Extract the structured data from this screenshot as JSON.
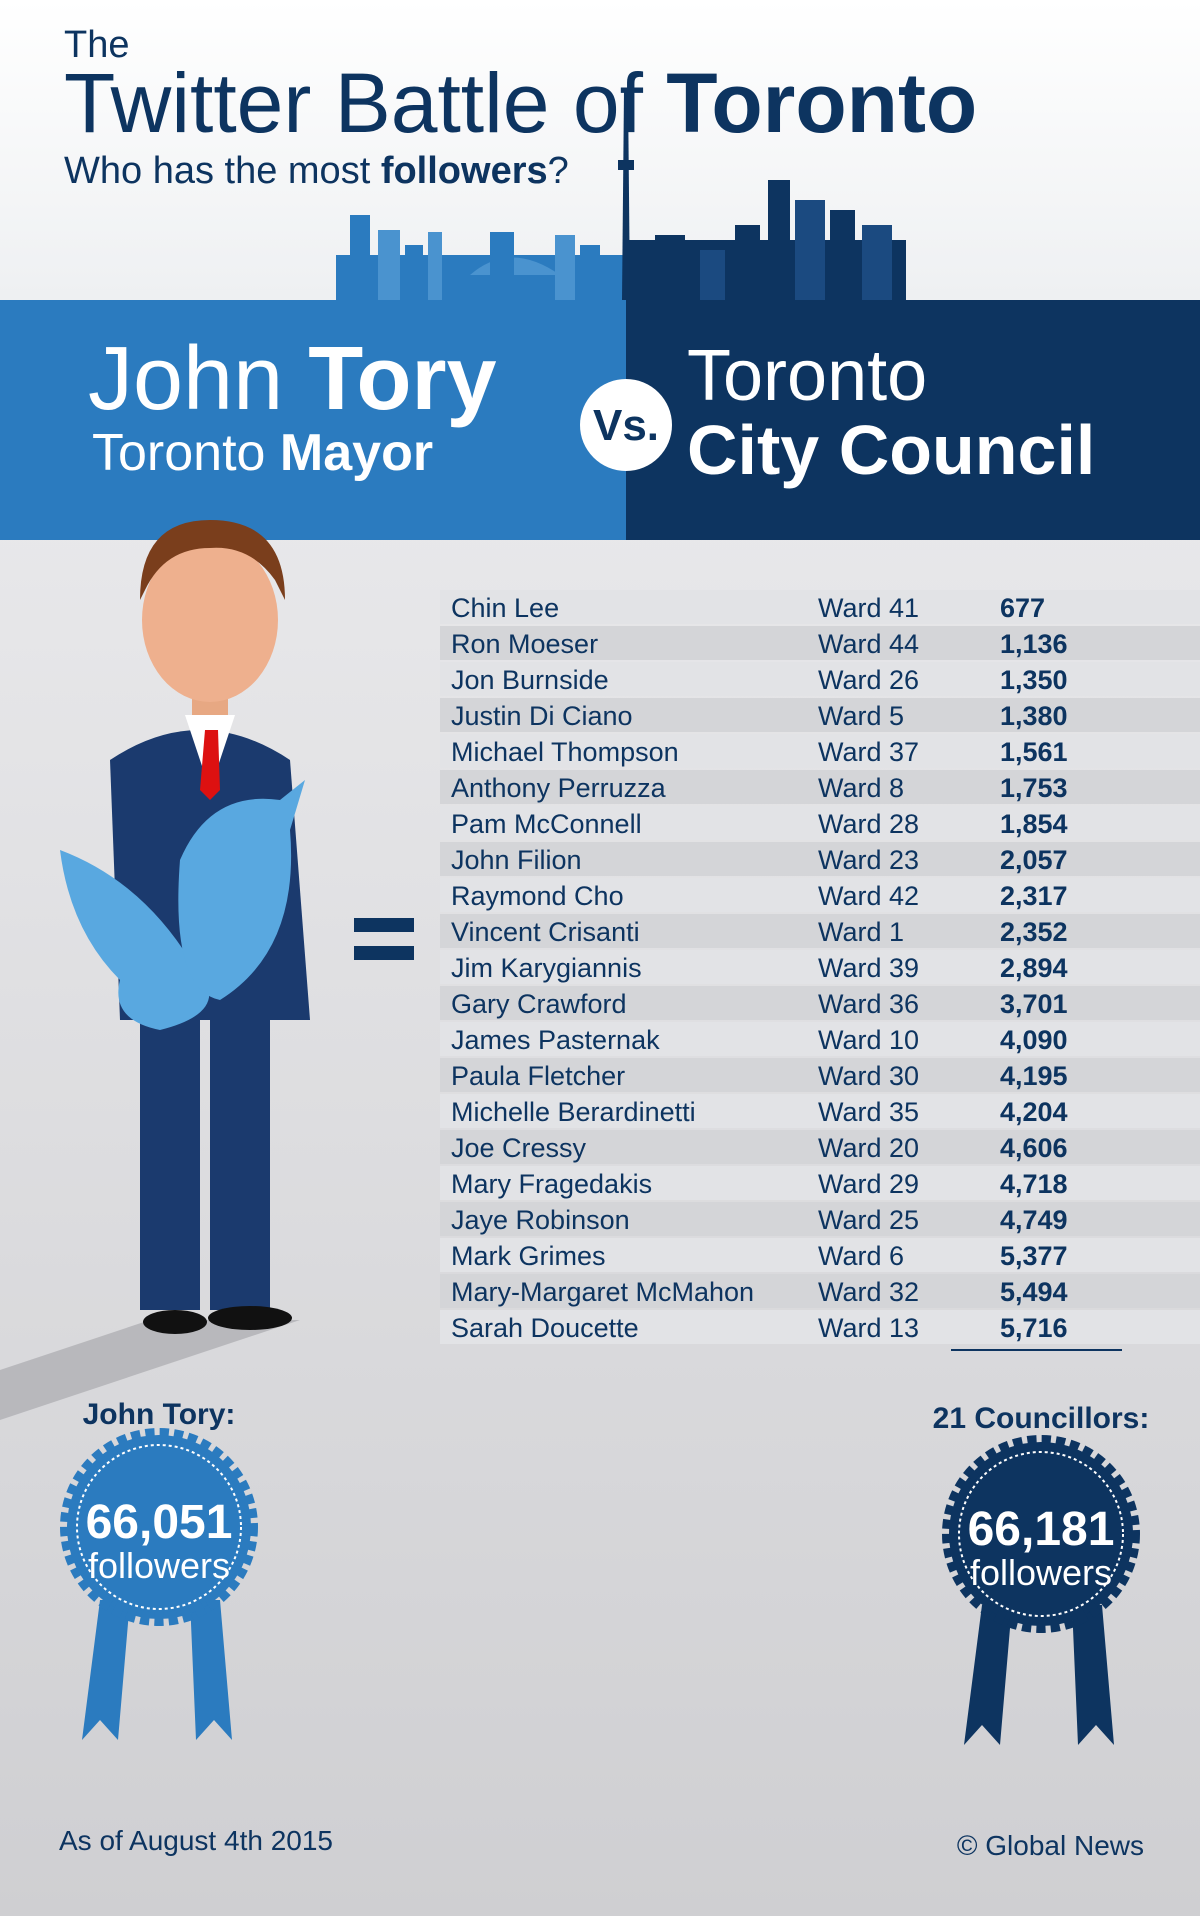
{
  "header": {
    "the": "The",
    "title_a": "Twitter Battle",
    "title_b": "of",
    "title_c": "Toronto",
    "subtitle_a": "Who has the most",
    "subtitle_b": "followers",
    "subtitle_c": "?"
  },
  "versus": {
    "left_first": "John",
    "left_last": "Tory",
    "left_role_a": "Toronto",
    "left_role_b": "Mayor",
    "vs": "Vs.",
    "right_a": "Toronto",
    "right_b": "City Council"
  },
  "table": {
    "rows": [
      [
        "Chin Lee",
        "Ward 41",
        "677"
      ],
      [
        "Ron Moeser",
        "Ward 44",
        "1,136"
      ],
      [
        "Jon Burnside",
        "Ward 26",
        "1,350"
      ],
      [
        "Justin Di Ciano",
        "Ward 5",
        "1,380"
      ],
      [
        "Michael Thompson",
        "Ward 37",
        "1,561"
      ],
      [
        "Anthony Perruzza",
        "Ward 8",
        "1,753"
      ],
      [
        "Pam McConnell",
        "Ward 28",
        "1,854"
      ],
      [
        "John Filion",
        "Ward 23",
        "2,057"
      ],
      [
        "Raymond Cho",
        "Ward 42",
        "2,317"
      ],
      [
        "Vincent Crisanti",
        "Ward 1",
        "2,352"
      ],
      [
        "Jim Karygiannis",
        "Ward 39",
        "2,894"
      ],
      [
        "Gary Crawford",
        "Ward 36",
        "3,701"
      ],
      [
        "James Pasternak",
        "Ward 10",
        "4,090"
      ],
      [
        "Paula Fletcher",
        "Ward 30",
        "4,195"
      ],
      [
        "Michelle Berardinetti",
        "Ward 35",
        "4,204"
      ],
      [
        "Joe Cressy",
        "Ward 20",
        "4,606"
      ],
      [
        "Mary Fragedakis",
        "Ward 29",
        "4,718"
      ],
      [
        "Jaye Robinson",
        "Ward 25",
        "4,749"
      ],
      [
        "Mark Grimes",
        "Ward 6",
        "5,377"
      ],
      [
        "Mary-Margaret McMahon",
        "Ward 32",
        "5,494"
      ],
      [
        "Sarah Doucette",
        "Ward 13",
        "5,716"
      ]
    ]
  },
  "totals": {
    "left": {
      "label": "John Tory:",
      "count": "66,051",
      "unit": "followers"
    },
    "right": {
      "label": "21 Councillors:",
      "count": "66,181",
      "unit": "followers"
    }
  },
  "footer": {
    "date": "As of August 4th 2015",
    "credit": "© Global News"
  }
}
